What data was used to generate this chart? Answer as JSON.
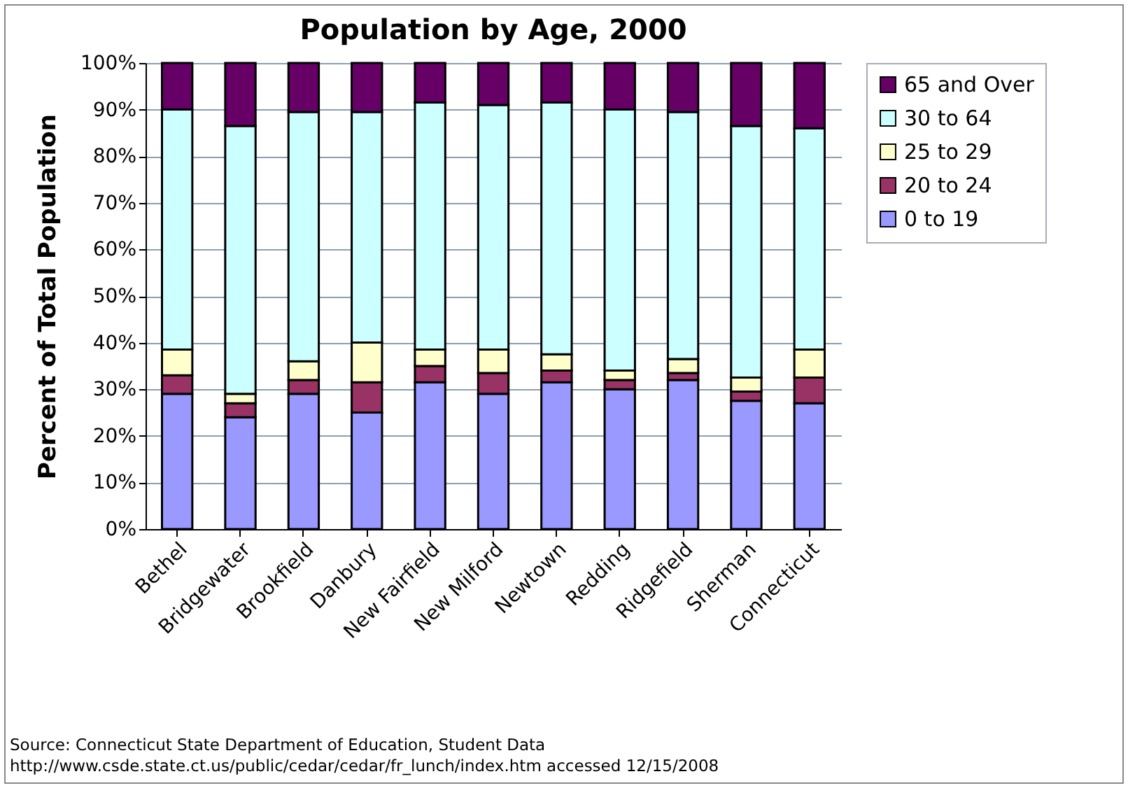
{
  "chart_data": {
    "type": "bar",
    "stacked": true,
    "title": "Population by Age, 2000",
    "ylabel": "Percent of Total Population",
    "categories": [
      "Bethel",
      "Bridgewater",
      "Brookfield",
      "Danbury",
      "New Fairfield",
      "New Milford",
      "Newtown",
      "Redding",
      "Ridgefield",
      "Sherman",
      "Connecticut"
    ],
    "series": [
      {
        "name": "0 to 19",
        "color": "#9999ff",
        "values": [
          29,
          24,
          29,
          25,
          31.5,
          29,
          31.5,
          30,
          32,
          27.5,
          27
        ]
      },
      {
        "name": "20 to 24",
        "color": "#993366",
        "values": [
          4,
          3,
          3,
          6.5,
          3.5,
          4.5,
          2.5,
          2,
          1.5,
          2,
          5.5
        ]
      },
      {
        "name": "25 to 29",
        "color": "#ffffcc",
        "values": [
          5.5,
          2,
          4,
          8.5,
          3.5,
          5,
          3.5,
          2,
          3,
          3,
          6
        ]
      },
      {
        "name": "30 to 64",
        "color": "#ccffff",
        "values": [
          51.5,
          57.5,
          53.5,
          49.5,
          53,
          52.5,
          54,
          56,
          53,
          54,
          47.5
        ]
      },
      {
        "name": "65 and Over",
        "color": "#660066",
        "values": [
          10,
          13.5,
          10.5,
          10.5,
          8.5,
          9,
          8.5,
          10,
          10.5,
          13.5,
          14
        ]
      }
    ],
    "ylim": [
      0,
      100
    ],
    "yticks": [
      {
        "value": 0,
        "label": "0%"
      },
      {
        "value": 10,
        "label": "10%"
      },
      {
        "value": 20,
        "label": "20%"
      },
      {
        "value": 30,
        "label": "30%"
      },
      {
        "value": 40,
        "label": "40%"
      },
      {
        "value": 50,
        "label": "50%"
      },
      {
        "value": 60,
        "label": "60%"
      },
      {
        "value": 70,
        "label": "70%"
      },
      {
        "value": 80,
        "label": "80%"
      },
      {
        "value": 90,
        "label": "90%"
      },
      {
        "value": 100,
        "label": "100%"
      }
    ],
    "grid": "y",
    "legend": "right",
    "annotations": [
      "Source: Connecticut State Department of Education, Student Data",
      "http://www.csde.state.ct.us/public/cedar/cedar/fr_lunch/index.htm  accessed 12/15/2008"
    ]
  }
}
